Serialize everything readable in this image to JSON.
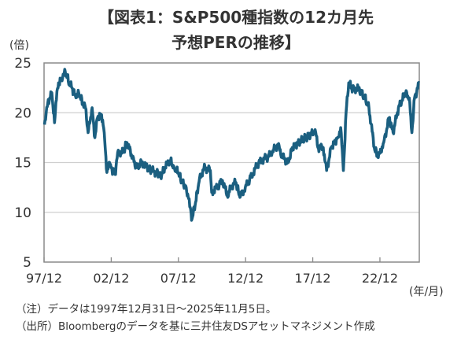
{
  "chart_data": {
    "type": "line",
    "title_line1": "【図表1：S&P500種指数の12カ月先",
    "title_line2": "予想PERの推移】",
    "ylabel": "(倍)",
    "xlabel": "(年/月)",
    "ylim": [
      5,
      25
    ],
    "yticks": [
      5,
      10,
      15,
      20,
      25
    ],
    "xlim": [
      1997.92,
      2025.85
    ],
    "xticks": [
      {
        "label": "97/12",
        "x": 1997.92
      },
      {
        "label": "02/12",
        "x": 2002.92
      },
      {
        "label": "07/12",
        "x": 2007.92
      },
      {
        "label": "12/12",
        "x": 2012.92
      },
      {
        "label": "17/12",
        "x": 2017.92
      },
      {
        "label": "22/12",
        "x": 2022.92
      }
    ],
    "grid": true,
    "line_color": "#1b5f80",
    "series": [
      {
        "x": [
          1997.95,
          1998.2,
          1998.5,
          1998.7,
          1998.8,
          1999.0,
          1999.3,
          1999.5,
          1999.8,
          2000.0,
          2000.3,
          2000.5,
          2000.8,
          2001.0,
          2001.2,
          2001.5,
          2001.7,
          2001.9,
          2002.2,
          2002.4,
          2002.6,
          2002.8,
          2002.9,
          2003.2,
          2003.4,
          2003.8,
          2004.1,
          2004.5,
          2004.8,
          2005.2,
          2005.6,
          2005.9,
          2006.3,
          2006.6,
          2006.9,
          2007.3,
          2007.6,
          2007.9,
          2008.2,
          2008.5,
          2008.8,
          2008.9,
          2009.2,
          2009.5,
          2009.9,
          2010.3,
          2010.4,
          2010.8,
          2011.2,
          2011.6,
          2011.8,
          2012.2,
          2012.5,
          2012.9,
          2013.3,
          2013.9,
          2014.5,
          2014.9,
          2015.3,
          2015.7,
          2016.1,
          2016.4,
          2016.9,
          2017.4,
          2017.9,
          2018.1,
          2018.3,
          2018.7,
          2018.95,
          2019.3,
          2019.8,
          2020.0,
          2020.2,
          2020.4,
          2020.6,
          2020.9,
          2021.3,
          2021.8,
          2022.1,
          2022.5,
          2022.8,
          2023.2,
          2023.6,
          2023.9,
          2024.3,
          2024.8,
          2025.1,
          2025.3,
          2025.5,
          2025.85
        ],
        "y": [
          18.8,
          21,
          22,
          19,
          21,
          23,
          23.5,
          24.1,
          23,
          22.5,
          21.5,
          22,
          21,
          20.5,
          18,
          20.5,
          17.5,
          19.5,
          19.8,
          18,
          14,
          15,
          14.5,
          13.8,
          16,
          16,
          17,
          15.5,
          14.5,
          15,
          14.5,
          14.2,
          14,
          13.6,
          14.5,
          15.2,
          14.5,
          14,
          13,
          12.5,
          10.5,
          9.2,
          11,
          13.5,
          14.5,
          14.2,
          12,
          12.5,
          13.2,
          11.5,
          12.5,
          13,
          11.5,
          12.5,
          13.5,
          15,
          15.5,
          16,
          16.8,
          15.5,
          15,
          16.5,
          17,
          17.5,
          18,
          18.3,
          16.5,
          16.5,
          14.2,
          16.5,
          17.5,
          18.5,
          14.2,
          20,
          23,
          22.3,
          22.5,
          21.5,
          20.5,
          16.5,
          15.5,
          17,
          19.5,
          18,
          20.5,
          22,
          21.5,
          18,
          21.5,
          23
        ]
      }
    ]
  },
  "notes": [
    "（注）データは1997年12月31日～2025年11月5日。",
    "（出所）Bloombergのデータを基に三井住友DSアセットマネジメント作成"
  ]
}
